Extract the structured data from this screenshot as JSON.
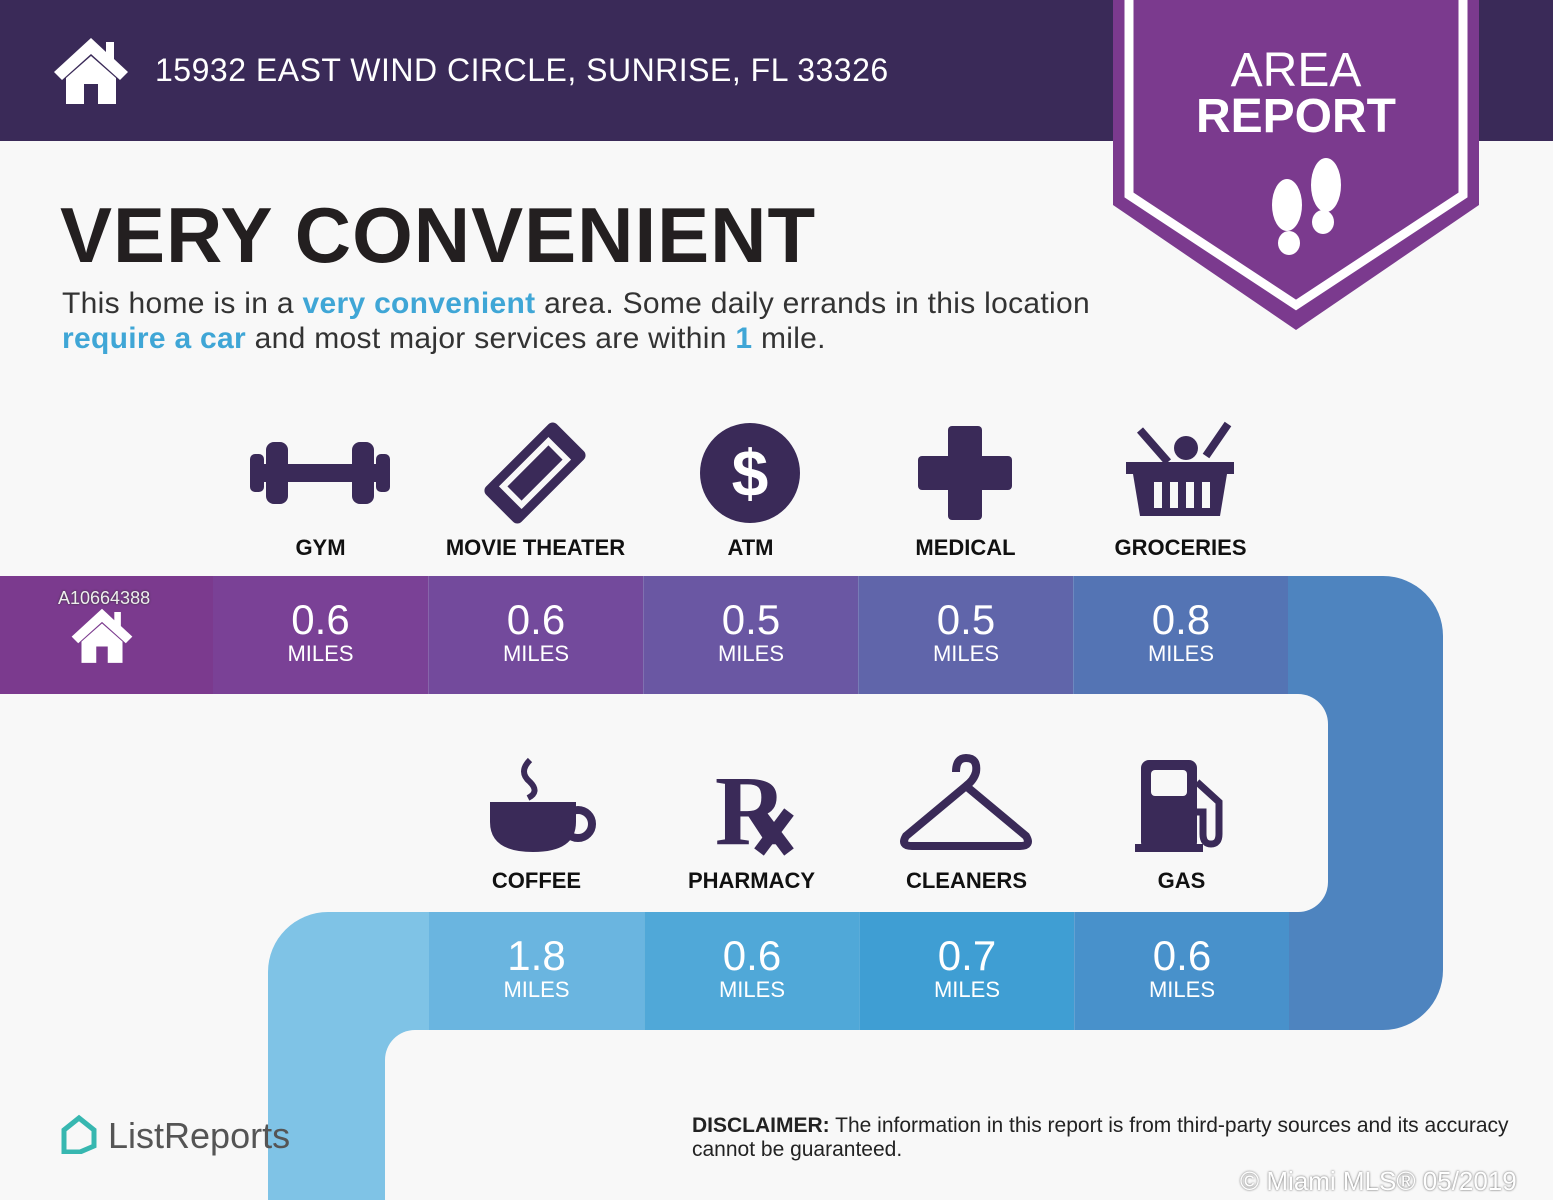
{
  "header": {
    "address": "15932 EAST WIND CIRCLE, SUNRISE, FL 33326"
  },
  "badge": {
    "line1": "AREA",
    "line2": "REPORT"
  },
  "title": "VERY CONVENIENT",
  "description": {
    "p1": "This home is in a ",
    "h1": "very convenient",
    "p2": " area. Some daily errands in this location ",
    "h2": "require a car",
    "p3": " and most major services are within ",
    "h3": "1",
    "p4": " mile."
  },
  "unit": "MILES",
  "row1": [
    {
      "label": "GYM",
      "value": "0.6",
      "icon": "dumbbell-icon",
      "color": "#7a4196"
    },
    {
      "label": "MOVIE THEATER",
      "value": "0.6",
      "icon": "ticket-icon",
      "color": "#734a9c"
    },
    {
      "label": "ATM",
      "value": "0.5",
      "icon": "dollar-icon",
      "color": "#6a57a3"
    },
    {
      "label": "MEDICAL",
      "value": "0.5",
      "icon": "medical-cross-icon",
      "color": "#6065aa"
    },
    {
      "label": "GROCERIES",
      "value": "0.8",
      "icon": "basket-icon",
      "color": "#5474b4"
    }
  ],
  "row2": [
    {
      "label": "COFFEE",
      "value": "1.8",
      "icon": "coffee-icon",
      "color": "#6ab5e0"
    },
    {
      "label": "PHARMACY",
      "value": "0.6",
      "icon": "rx-icon",
      "color": "#50a8d8"
    },
    {
      "label": "CLEANERS",
      "value": "0.7",
      "icon": "hanger-icon",
      "color": "#3f9ed3"
    },
    {
      "label": "GAS",
      "value": "0.6",
      "icon": "gas-pump-icon",
      "color": "#4891cb"
    }
  ],
  "watermark": {
    "listing_id": "A10664388",
    "mls": "© Miami MLS® 05/2019"
  },
  "logo": "ListReports",
  "disclaimer": {
    "bold": "DISCLAIMER:",
    "text": " The information in this report is from third-party sources and its accuracy cannot be guaranteed."
  },
  "colors": {
    "header": "#3a2a58",
    "badge": "#7b3a8e",
    "highlight": "#3fa6d6",
    "icon": "#3a2a58"
  }
}
